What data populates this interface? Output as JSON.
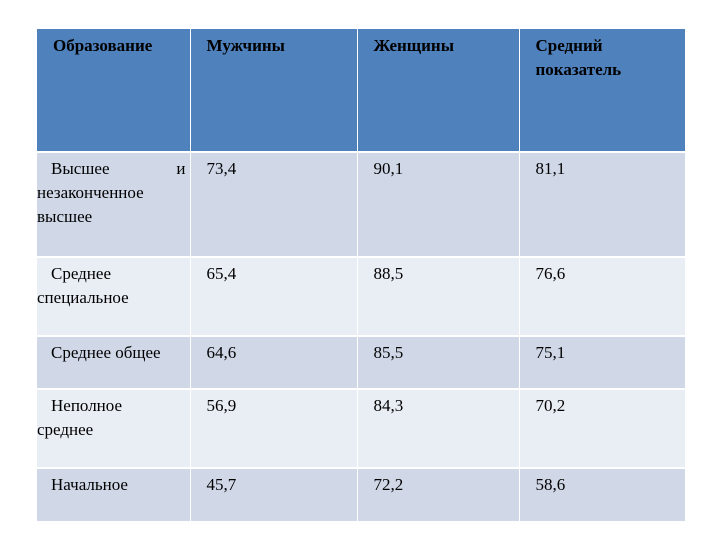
{
  "table": {
    "headers": [
      "Образование",
      "Мужчины",
      "Женщины",
      "Средний показатель"
    ],
    "rows": [
      {
        "education_line1": "Высшее и",
        "education_line2": "незаконченное высшее",
        "men": "73,4",
        "women": "90,1",
        "average": "81,1"
      },
      {
        "education_line1": "Среднее",
        "education_line2": "специальное",
        "men": "65,4",
        "women": "88,5",
        "average": "76,6"
      },
      {
        "education_line1": "Среднее общее",
        "education_line2": "",
        "men": "64,6",
        "women": "85,5",
        "average": "75,1"
      },
      {
        "education_line1": "Неполное",
        "education_line2": "среднее",
        "men": "56,9",
        "women": "84,3",
        "average": "70,2"
      },
      {
        "education_line1": "Начальное",
        "education_line2": "",
        "men": "45,7",
        "women": "72,2",
        "average": "58,6"
      }
    ]
  },
  "colors": {
    "header_bg": "#4f81bd",
    "row_dark": "#d0d8e8",
    "row_light": "#e9edf4"
  }
}
